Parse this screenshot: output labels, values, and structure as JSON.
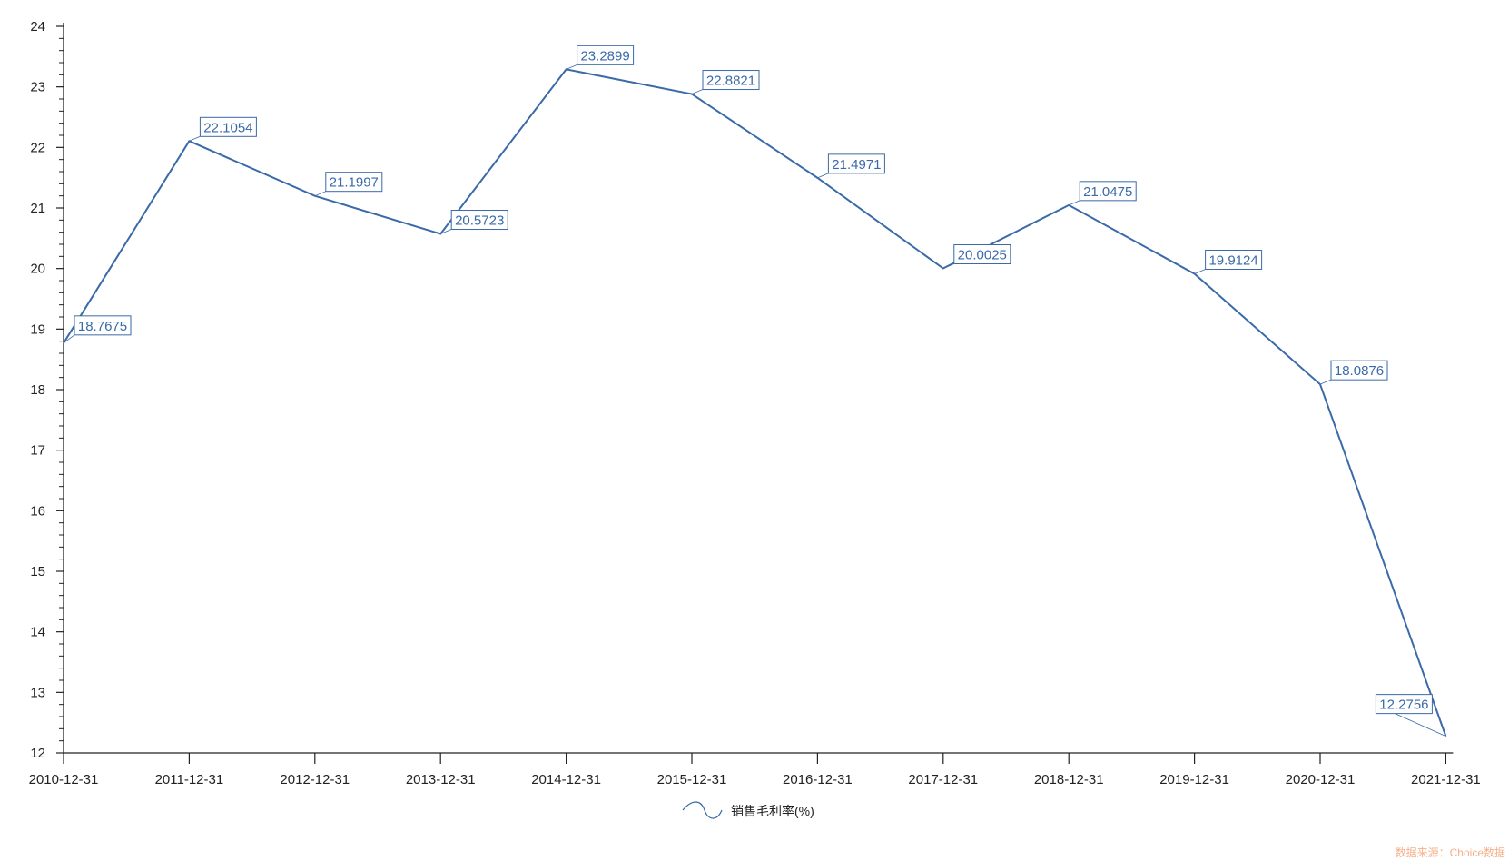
{
  "chart_data": {
    "type": "line",
    "title": "",
    "xlabel": "",
    "ylabel": "",
    "categories": [
      "2010-12-31",
      "2011-12-31",
      "2012-12-31",
      "2013-12-31",
      "2014-12-31",
      "2015-12-31",
      "2016-12-31",
      "2017-12-31",
      "2018-12-31",
      "2019-12-31",
      "2020-12-31",
      "2021-12-31"
    ],
    "series": [
      {
        "name": "销售毛利率(%)",
        "values": [
          18.7675,
          22.1054,
          21.1997,
          20.5723,
          23.2899,
          22.8821,
          21.4971,
          20.0025,
          21.0475,
          19.9124,
          18.0876,
          12.2756
        ],
        "color": "#3a6aa8"
      }
    ],
    "data_labels": [
      "18.7675",
      "22.1054",
      "21.1997",
      "20.5723",
      "23.2899",
      "22.8821",
      "21.4971",
      "20.0025",
      "21.0475",
      "19.9124",
      "18.0876",
      "12.2756"
    ],
    "ylim": [
      12,
      24
    ],
    "yticks": [
      "12",
      "13",
      "14",
      "15",
      "16",
      "17",
      "18",
      "19",
      "20",
      "21",
      "22",
      "23",
      "24"
    ],
    "grid": false,
    "legend": {
      "position": "bottom-center",
      "label": "销售毛利率(%)"
    },
    "source": "数据来源：Choice数据"
  }
}
